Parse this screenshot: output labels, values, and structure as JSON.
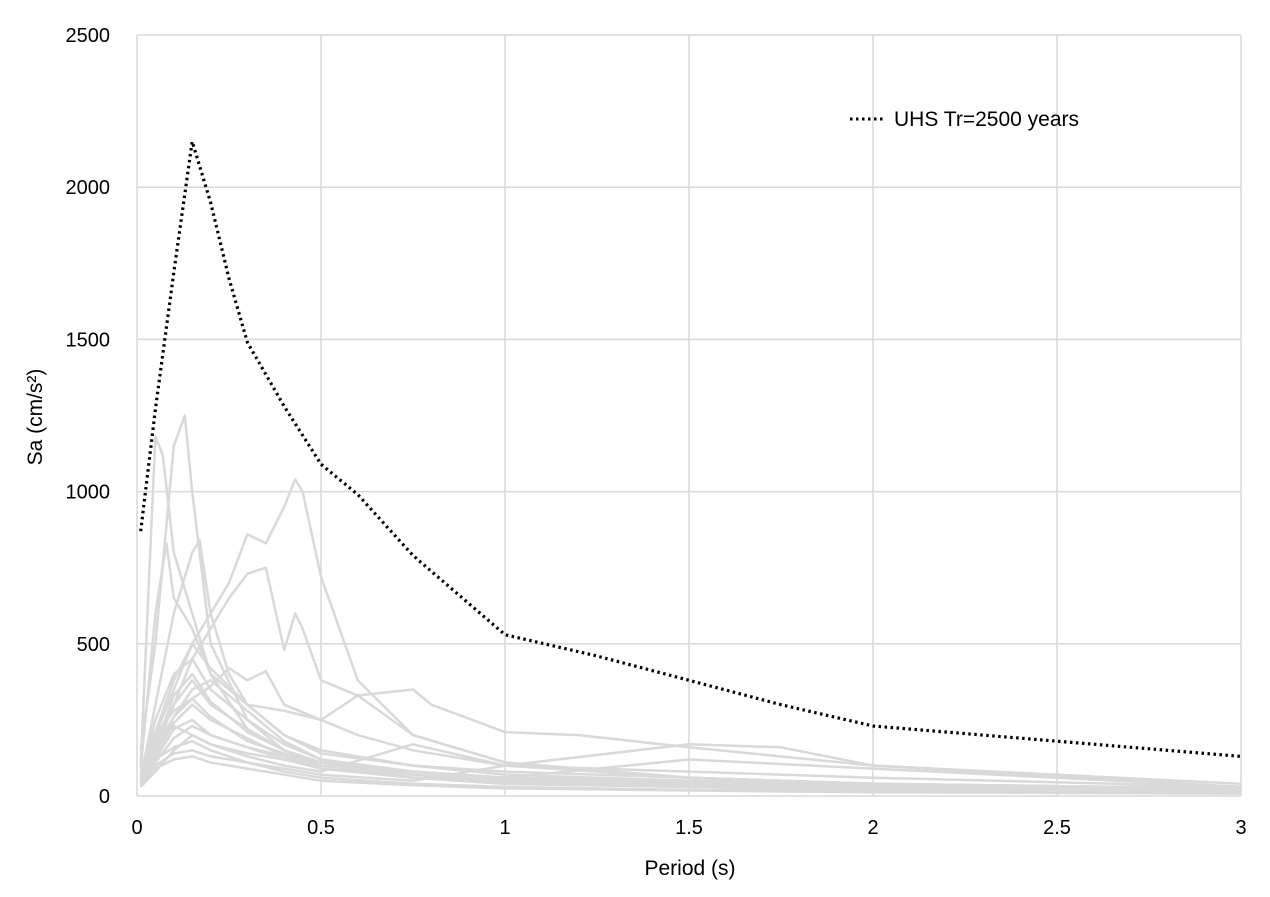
{
  "chart_data": {
    "type": "line",
    "title": "",
    "xlabel": "Period (s)",
    "ylabel": "Sa (cm/s²)",
    "xlim": [
      0,
      3
    ],
    "ylim": [
      0,
      2500
    ],
    "xticks": [
      0,
      0.5,
      1,
      1.5,
      2,
      2.5,
      3
    ],
    "xtick_labels": [
      "0",
      "0.5",
      "1",
      "1.5",
      "2",
      "2.5",
      "3"
    ],
    "yticks": [
      0,
      500,
      1000,
      1500,
      2000,
      2500
    ],
    "ytick_labels": [
      "0",
      "500",
      "1000",
      "1500",
      "2000",
      "2500"
    ],
    "grid": true,
    "legend_position": "top-right",
    "legend": [
      "UHS Tr=2500 years"
    ],
    "colors": {
      "uhs": "#000000",
      "records": "#d9d9d9",
      "grid": "#d9d9d9"
    },
    "uhs": {
      "name": "UHS Tr=2500 years",
      "style": "dotted",
      "x": [
        0.01,
        0.05,
        0.1,
        0.15,
        0.2,
        0.25,
        0.3,
        0.4,
        0.5,
        0.6,
        0.75,
        1.0,
        1.25,
        1.5,
        1.75,
        2.0,
        2.5,
        3.0
      ],
      "y": [
        870,
        1270,
        1720,
        2150,
        1950,
        1700,
        1490,
        1280,
        1090,
        990,
        790,
        530,
        460,
        380,
        300,
        230,
        180,
        130
      ]
    },
    "records": [
      {
        "x": [
          0.01,
          0.05,
          0.1,
          0.13,
          0.15,
          0.2,
          0.3,
          0.4,
          0.5,
          0.75,
          1,
          1.5,
          2,
          3
        ],
        "y": [
          150,
          500,
          1150,
          1250,
          1000,
          500,
          250,
          150,
          110,
          80,
          60,
          40,
          30,
          20
        ]
      },
      {
        "x": [
          0.01,
          0.05,
          0.07,
          0.1,
          0.15,
          0.2,
          0.3,
          0.4,
          0.5,
          0.75,
          1,
          1.5,
          2,
          3
        ],
        "y": [
          100,
          1180,
          1120,
          800,
          600,
          400,
          220,
          150,
          100,
          70,
          50,
          35,
          25,
          15
        ]
      },
      {
        "x": [
          0.01,
          0.05,
          0.1,
          0.15,
          0.2,
          0.25,
          0.3,
          0.35,
          0.4,
          0.43,
          0.45,
          0.5,
          0.6,
          0.75,
          1,
          1.5,
          2,
          3
        ],
        "y": [
          80,
          200,
          350,
          500,
          600,
          700,
          860,
          830,
          950,
          1040,
          1000,
          720,
          380,
          200,
          110,
          60,
          40,
          25
        ]
      },
      {
        "x": [
          0.01,
          0.05,
          0.1,
          0.15,
          0.2,
          0.25,
          0.3,
          0.35,
          0.4,
          0.43,
          0.45,
          0.5,
          0.6,
          0.75,
          1,
          1.5,
          2,
          3
        ],
        "y": [
          70,
          180,
          300,
          450,
          550,
          650,
          730,
          750,
          480,
          600,
          550,
          380,
          330,
          200,
          110,
          60,
          40,
          25
        ]
      },
      {
        "x": [
          0.01,
          0.05,
          0.1,
          0.15,
          0.17,
          0.2,
          0.25,
          0.3,
          0.4,
          0.5,
          0.6,
          0.75,
          0.8,
          1,
          1.2,
          1.5,
          2,
          3
        ],
        "y": [
          60,
          300,
          600,
          800,
          840,
          600,
          400,
          300,
          280,
          250,
          330,
          350,
          300,
          210,
          200,
          160,
          100,
          30
        ]
      },
      {
        "x": [
          0.01,
          0.05,
          0.08,
          0.1,
          0.15,
          0.2,
          0.3,
          0.4,
          0.5,
          0.75,
          1,
          1.5,
          2,
          3
        ],
        "y": [
          90,
          600,
          830,
          650,
          550,
          400,
          300,
          200,
          150,
          100,
          80,
          60,
          40,
          20
        ]
      },
      {
        "x": [
          0.01,
          0.05,
          0.1,
          0.15,
          0.2,
          0.25,
          0.3,
          0.35,
          0.4,
          0.5,
          0.6,
          0.75,
          1,
          1.5,
          1.75,
          2,
          3
        ],
        "y": [
          60,
          160,
          260,
          320,
          360,
          420,
          380,
          410,
          300,
          250,
          200,
          150,
          100,
          170,
          160,
          100,
          40
        ]
      },
      {
        "x": [
          0.01,
          0.05,
          0.1,
          0.15,
          0.2,
          0.3,
          0.4,
          0.5,
          0.75,
          1,
          1.5,
          2,
          3
        ],
        "y": [
          50,
          250,
          400,
          450,
          350,
          250,
          170,
          120,
          80,
          60,
          50,
          40,
          25
        ]
      },
      {
        "x": [
          0.01,
          0.05,
          0.1,
          0.15,
          0.2,
          0.3,
          0.4,
          0.5,
          0.75,
          1,
          1.5,
          2,
          3
        ],
        "y": [
          40,
          150,
          300,
          380,
          300,
          220,
          150,
          110,
          70,
          50,
          35,
          25,
          15
        ]
      },
      {
        "x": [
          0.01,
          0.05,
          0.1,
          0.15,
          0.2,
          0.3,
          0.4,
          0.5,
          0.75,
          1,
          1.5,
          2,
          3
        ],
        "y": [
          30,
          120,
          220,
          250,
          200,
          160,
          120,
          100,
          80,
          60,
          120,
          90,
          30
        ]
      },
      {
        "x": [
          0.01,
          0.05,
          0.1,
          0.15,
          0.2,
          0.3,
          0.4,
          0.5,
          0.75,
          1,
          1.5,
          2,
          3
        ],
        "y": [
          50,
          180,
          230,
          200,
          170,
          140,
          120,
          90,
          60,
          40,
          30,
          20,
          10
        ]
      },
      {
        "x": [
          0.01,
          0.05,
          0.1,
          0.15,
          0.2,
          0.3,
          0.4,
          0.5,
          0.75,
          1,
          1.5,
          2,
          3
        ],
        "y": [
          60,
          120,
          160,
          180,
          150,
          110,
          90,
          70,
          50,
          100,
          80,
          60,
          30
        ]
      },
      {
        "x": [
          0.01,
          0.05,
          0.1,
          0.15,
          0.2,
          0.3,
          0.4,
          0.5,
          0.75,
          1,
          1.5,
          2,
          3
        ],
        "y": [
          40,
          100,
          140,
          150,
          130,
          110,
          80,
          60,
          40,
          30,
          20,
          15,
          10
        ]
      },
      {
        "x": [
          0.01,
          0.05,
          0.1,
          0.15,
          0.2,
          0.3,
          0.4,
          0.5,
          0.75,
          1,
          1.5,
          2,
          3
        ],
        "y": [
          70,
          200,
          280,
          320,
          260,
          180,
          140,
          100,
          70,
          50,
          40,
          30,
          20
        ]
      },
      {
        "x": [
          0.01,
          0.05,
          0.1,
          0.15,
          0.2,
          0.3,
          0.4,
          0.5,
          0.75,
          1,
          1.5,
          2,
          3
        ],
        "y": [
          45,
          130,
          240,
          300,
          250,
          190,
          130,
          90,
          60,
          45,
          35,
          25,
          15
        ]
      },
      {
        "x": [
          0.01,
          0.05,
          0.1,
          0.15,
          0.2,
          0.3,
          0.4,
          0.5,
          0.75,
          1,
          1.5,
          2,
          3
        ],
        "y": [
          55,
          160,
          330,
          400,
          310,
          210,
          150,
          110,
          80,
          55,
          40,
          30,
          20
        ]
      },
      {
        "x": [
          0.01,
          0.05,
          0.1,
          0.15,
          0.2,
          0.3,
          0.4,
          0.5,
          0.75,
          1,
          1.5,
          2,
          3
        ],
        "y": [
          35,
          90,
          120,
          130,
          110,
          90,
          70,
          50,
          35,
          25,
          18,
          12,
          8
        ]
      },
      {
        "x": [
          0.01,
          0.05,
          0.1,
          0.15,
          0.2,
          0.3,
          0.4,
          0.5,
          0.75,
          1,
          1.5,
          2,
          3
        ],
        "y": [
          65,
          210,
          380,
          500,
          420,
          300,
          200,
          140,
          100,
          70,
          50,
          35,
          25
        ]
      },
      {
        "x": [
          0.01,
          0.05,
          0.1,
          0.15,
          0.2,
          0.3,
          0.4,
          0.5,
          0.75,
          1,
          1.5,
          2,
          3
        ],
        "y": [
          40,
          110,
          190,
          230,
          200,
          160,
          130,
          100,
          60,
          40,
          30,
          20,
          12
        ]
      },
      {
        "x": [
          0.01,
          0.05,
          0.1,
          0.15,
          0.2,
          0.3,
          0.4,
          0.5,
          0.75,
          1,
          1.5,
          2,
          3
        ],
        "y": [
          50,
          140,
          260,
          350,
          380,
          280,
          180,
          120,
          80,
          60,
          45,
          30,
          20
        ]
      },
      {
        "x": [
          0.01,
          0.05,
          0.1,
          0.15,
          0.2,
          0.3,
          0.4,
          0.5,
          0.75,
          1,
          1.5,
          2,
          3
        ],
        "y": [
          30,
          80,
          150,
          200,
          170,
          130,
          100,
          80,
          170,
          100,
          60,
          40,
          20
        ]
      }
    ]
  }
}
